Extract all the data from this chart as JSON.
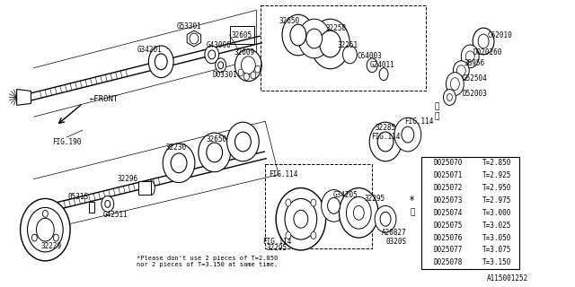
{
  "bg_color": "#ffffff",
  "diagram_number": "A115001252",
  "note_text": "*Please don't use 2 pieces of T=2.850\nnor 2 pieces of T=3.150 at same time.",
  "table_data": [
    {
      "part": "D025070",
      "thickness": "T=2.850"
    },
    {
      "part": "D025071",
      "thickness": "T=2.925"
    },
    {
      "part": "D025072",
      "thickness": "T=2.950"
    },
    {
      "part": "D025073",
      "thickness": "T=2.975"
    },
    {
      "part": "D025074",
      "thickness": "T=3.000"
    },
    {
      "part": "D025075",
      "thickness": "T=3.025"
    },
    {
      "part": "D025076",
      "thickness": "T=3.050"
    },
    {
      "part": "D025077",
      "thickness": "T=3.075"
    },
    {
      "part": "D025078",
      "thickness": "T=3.150"
    }
  ],
  "star_row": 3,
  "circle1_row": 4,
  "lc": "#000000",
  "fs": 5.5
}
